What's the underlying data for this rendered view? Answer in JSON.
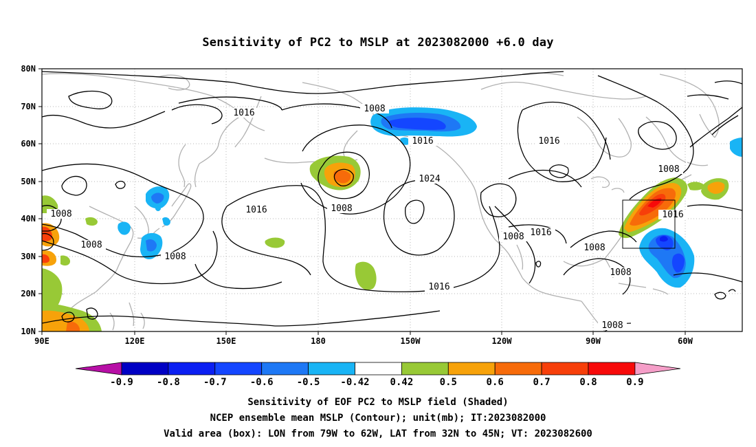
{
  "title": "Sensitivity of PC2 to MSLP at 2023082000 +6.0 day",
  "axes": {
    "lon_ticks": [
      "90E",
      "120E",
      "150E",
      "180",
      "150W",
      "120W",
      "90W",
      "60W"
    ],
    "lat_ticks": [
      "80N",
      "70N",
      "60N",
      "50N",
      "40N",
      "30N",
      "20N",
      "10N"
    ]
  },
  "contour_labels": [
    "1016",
    "1008",
    "1016",
    "1016",
    "1008",
    "1024",
    "1016",
    "1008",
    "1016",
    "1008",
    "1008",
    "1016",
    "1016",
    "1008",
    "1008",
    "1008",
    "1008"
  ],
  "colorbar": {
    "labels": [
      "-0.9",
      "-0.8",
      "-0.7",
      "-0.6",
      "-0.5",
      "-0.42",
      "0.42",
      "0.5",
      "0.6",
      "0.7",
      "0.8",
      "0.9"
    ],
    "colors": [
      "#b70fa6",
      "#0000c4",
      "#0b1ff2",
      "#1446ff",
      "#1e78f5",
      "#19b4f5",
      "#ffffff",
      "#98c936",
      "#f7a20a",
      "#f76b0a",
      "#f73f0a",
      "#f70a0a",
      "#f59ec8"
    ]
  },
  "captions": {
    "line1": "Sensitivity of EOF PC2 to MSLP field (Shaded)",
    "line2": "NCEP ensemble mean MSLP (Contour); unit(mb); IT:2023082000",
    "line3": "Valid area (box): LON from 79W to 62W, LAT from 32N to 45N; VT: 2023082600"
  }
}
